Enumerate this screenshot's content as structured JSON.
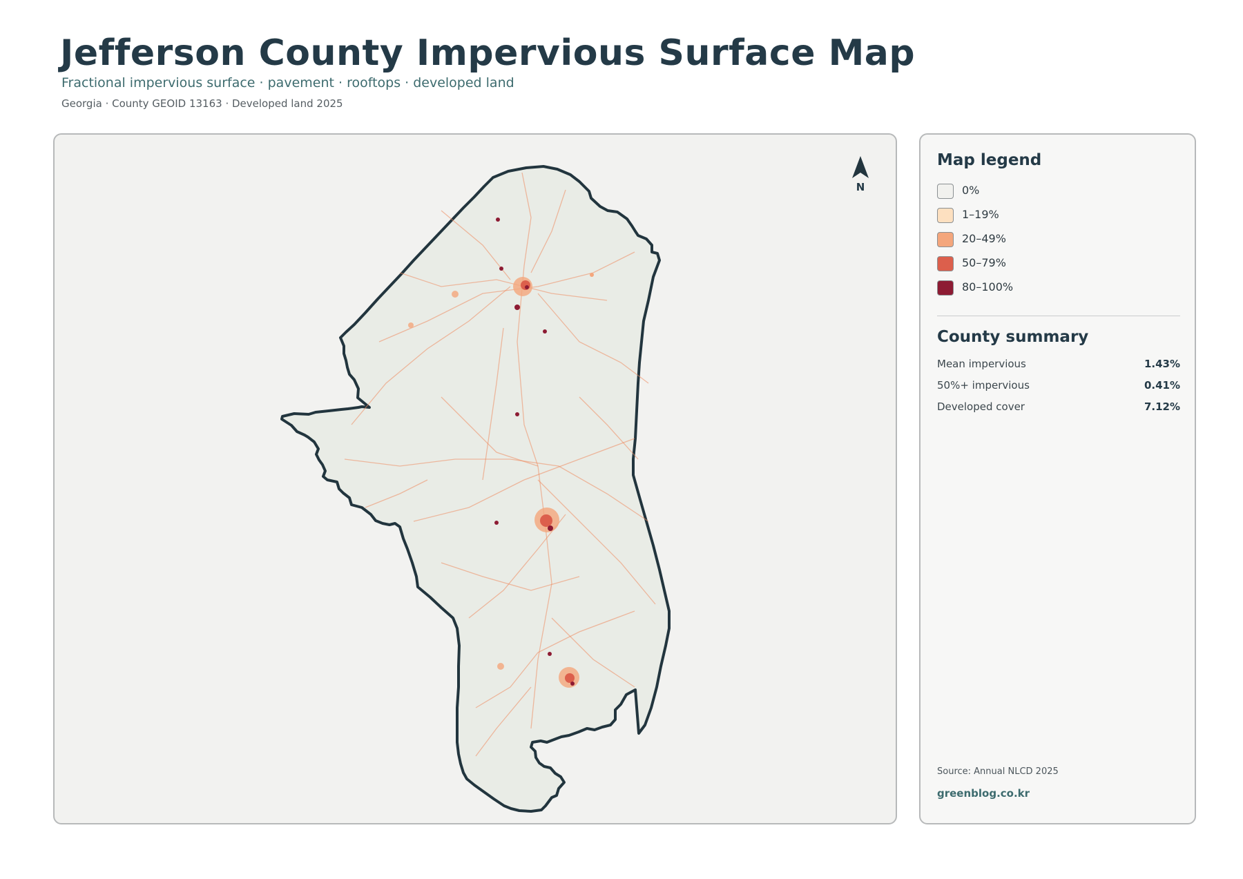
{
  "header": {
    "title": "Jefferson County Impervious Surface Map",
    "subtitle": "Fractional impervious surface · pavement · rooftops · developed land",
    "meta": "Georgia · County GEOID 13163 · Developed land 2025"
  },
  "map": {
    "north_label": "N",
    "background_color": "#f2f2f0",
    "land_color": "#e9ece6",
    "boundary_color": "#22353e",
    "road_color": "#ef8a5e"
  },
  "legend": {
    "title": "Map legend",
    "items": [
      {
        "label": "0%",
        "color": "#f1f1ee"
      },
      {
        "label": "1–19%",
        "color": "#fde0c0"
      },
      {
        "label": "20–49%",
        "color": "#f4a67c"
      },
      {
        "label": "50–79%",
        "color": "#dc5f4c"
      },
      {
        "label": "80–100%",
        "color": "#8d1b33"
      }
    ]
  },
  "summary": {
    "title": "County summary",
    "stats": [
      {
        "label": "Mean impervious",
        "value": "1.43%"
      },
      {
        "label": "50%+ impervious",
        "value": "0.41%"
      },
      {
        "label": "Developed cover",
        "value": "7.12%"
      }
    ]
  },
  "footer": {
    "source": "Source: Annual NLCD 2025",
    "credit": "greenblog.co.kr"
  }
}
